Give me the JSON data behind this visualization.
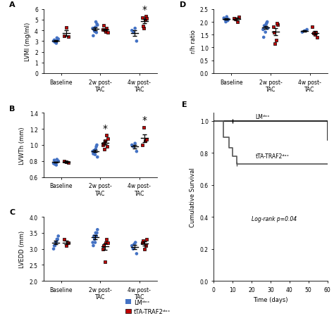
{
  "panel_A": {
    "title": "A",
    "ylabel": "LVMI (mg/ml)",
    "ylim": [
      0,
      6
    ],
    "yticks": [
      0,
      1,
      2,
      3,
      4,
      5,
      6
    ],
    "groups": [
      "Baseline",
      "2w post-\nTAC",
      "4w post-\nTAC"
    ],
    "blue": [
      [
        2.9,
        3.0,
        3.1,
        3.2,
        3.0,
        2.8,
        3.3,
        3.1
      ],
      [
        3.8,
        4.1,
        4.3,
        4.0,
        3.9,
        4.2,
        4.5,
        4.6,
        4.8,
        3.5
      ],
      [
        3.0,
        3.8,
        4.0,
        4.2
      ]
    ],
    "red": [
      [
        3.4,
        3.5,
        4.3
      ],
      [
        3.9,
        4.0,
        4.1,
        4.2,
        3.8,
        4.5
      ],
      [
        4.2,
        5.0,
        5.2,
        5.3,
        5.1,
        4.4
      ]
    ],
    "blue_means": [
      3.05,
      4.15,
      3.75
    ],
    "red_means": [
      3.73,
      4.08,
      4.87
    ],
    "blue_se": [
      0.06,
      0.12,
      0.25
    ],
    "red_se": [
      0.27,
      0.09,
      0.18
    ],
    "asterisk": [
      false,
      false,
      true
    ]
  },
  "panel_B": {
    "title": "B",
    "ylabel": "LVWTh (mm)",
    "ylim": [
      0.6,
      1.4
    ],
    "yticks": [
      0.6,
      0.8,
      1.0,
      1.2,
      1.4
    ],
    "groups": [
      "Baseline",
      "2w post-\nTAC",
      "4w post-\nTAC"
    ],
    "blue": [
      [
        0.76,
        0.78,
        0.79,
        0.8,
        0.77,
        0.75,
        0.82,
        0.81
      ],
      [
        0.88,
        0.9,
        0.93,
        0.95,
        0.92,
        0.85,
        0.98,
        1.0,
        0.89
      ],
      [
        0.92,
        0.98,
        1.0,
        1.02
      ]
    ],
    "red": [
      [
        0.78,
        0.8,
        0.79
      ],
      [
        0.95,
        1.0,
        1.02,
        1.05,
        0.98,
        1.08,
        1.12
      ],
      [
        1.0,
        1.05,
        1.07,
        1.22
      ]
    ],
    "blue_means": [
      0.785,
      0.925,
      0.98
    ],
    "red_means": [
      0.79,
      1.03,
      1.085
    ],
    "blue_se": [
      0.008,
      0.014,
      0.023
    ],
    "red_se": [
      0.006,
      0.022,
      0.049
    ],
    "asterisk": [
      false,
      true,
      true
    ]
  },
  "panel_C": {
    "title": "C",
    "ylabel": "LVEDD (mm)",
    "ylim": [
      2.0,
      4.0
    ],
    "yticks": [
      2.0,
      2.5,
      3.0,
      3.5,
      4.0
    ],
    "groups": [
      "Baseline",
      "2w post-\nTAC",
      "4w post-\nTAC"
    ],
    "blue": [
      [
        3.1,
        3.2,
        3.3,
        3.4,
        3.0,
        3.2,
        3.3,
        3.1
      ],
      [
        3.2,
        3.3,
        3.4,
        3.5,
        3.2,
        3.6,
        3.4,
        3.5,
        3.1
      ],
      [
        2.85,
        3.0,
        3.1,
        3.2,
        3.15
      ]
    ],
    "red": [
      [
        3.2,
        3.3,
        3.1
      ],
      [
        2.6,
        3.2,
        3.1,
        3.0,
        3.2,
        3.3
      ],
      [
        3.0,
        3.2,
        3.1,
        3.3,
        3.25
      ]
    ],
    "blue_means": [
      3.2,
      3.37,
      3.06
    ],
    "red_means": [
      3.2,
      3.07,
      3.17
    ],
    "blue_se": [
      0.05,
      0.06,
      0.07
    ],
    "red_se": [
      0.06,
      0.1,
      0.06
    ],
    "asterisk": [
      false,
      false,
      false
    ]
  },
  "panel_D": {
    "title": "D",
    "ylabel": "r/h ratio",
    "ylim": [
      0.0,
      2.5
    ],
    "yticks": [
      0.0,
      0.5,
      1.0,
      1.5,
      2.0,
      2.5
    ],
    "groups": [
      "Baseline",
      "2w post-\nTAC",
      "4w post-\nTAC"
    ],
    "blue": [
      [
        2.0,
        2.1,
        2.15,
        2.2,
        2.05,
        2.1
      ],
      [
        1.6,
        1.8,
        1.85,
        1.9,
        1.7,
        1.75,
        1.95,
        2.0,
        1.4
      ],
      [
        1.6,
        1.65,
        1.7
      ]
    ],
    "red": [
      [
        2.0,
        2.1,
        2.15,
        2.2
      ],
      [
        1.15,
        1.3,
        1.6,
        1.8,
        1.9,
        1.95
      ],
      [
        1.4,
        1.5,
        1.55,
        1.6,
        1.8
      ]
    ],
    "blue_means": [
      2.1,
      1.78,
      1.65
    ],
    "red_means": [
      2.11,
      1.62,
      1.57
    ],
    "blue_se": [
      0.03,
      0.06,
      0.03
    ],
    "red_se": [
      0.05,
      0.13,
      0.07
    ],
    "asterisk": [
      false,
      false,
      false
    ]
  },
  "panel_E": {
    "title": "E",
    "ylabel": "Cumulative Survival",
    "xlabel": "Time (days)",
    "lm_label": "LMᵈᵒˣ",
    "tTA_label": "tTA-TRAF2ᵈᵒˣ",
    "logrank_text": "Log-rank p=0.04",
    "lm_times": [
      0,
      10,
      60
    ],
    "lm_survival": [
      1.0,
      1.0,
      0.88
    ],
    "tTA_times": [
      0,
      5,
      8,
      10,
      12,
      60
    ],
    "tTA_survival": [
      1.0,
      0.9,
      0.83,
      0.78,
      0.73,
      0.73
    ],
    "lm_censor_x": [
      10
    ],
    "lm_censor_y": [
      1.0
    ],
    "tTA_censor_x": [
      12
    ],
    "tTA_censor_y": [
      0.73
    ]
  },
  "legend": {
    "lm_label": "LMᵈᵒˣ",
    "tTA_label": "tTA-TRAF2ᵈᵒˣ",
    "blue_color": "#4472C4",
    "red_color": "#C00000"
  },
  "blue_color": "#4472C4",
  "red_color": "#C00000",
  "survival_color": "#555555"
}
